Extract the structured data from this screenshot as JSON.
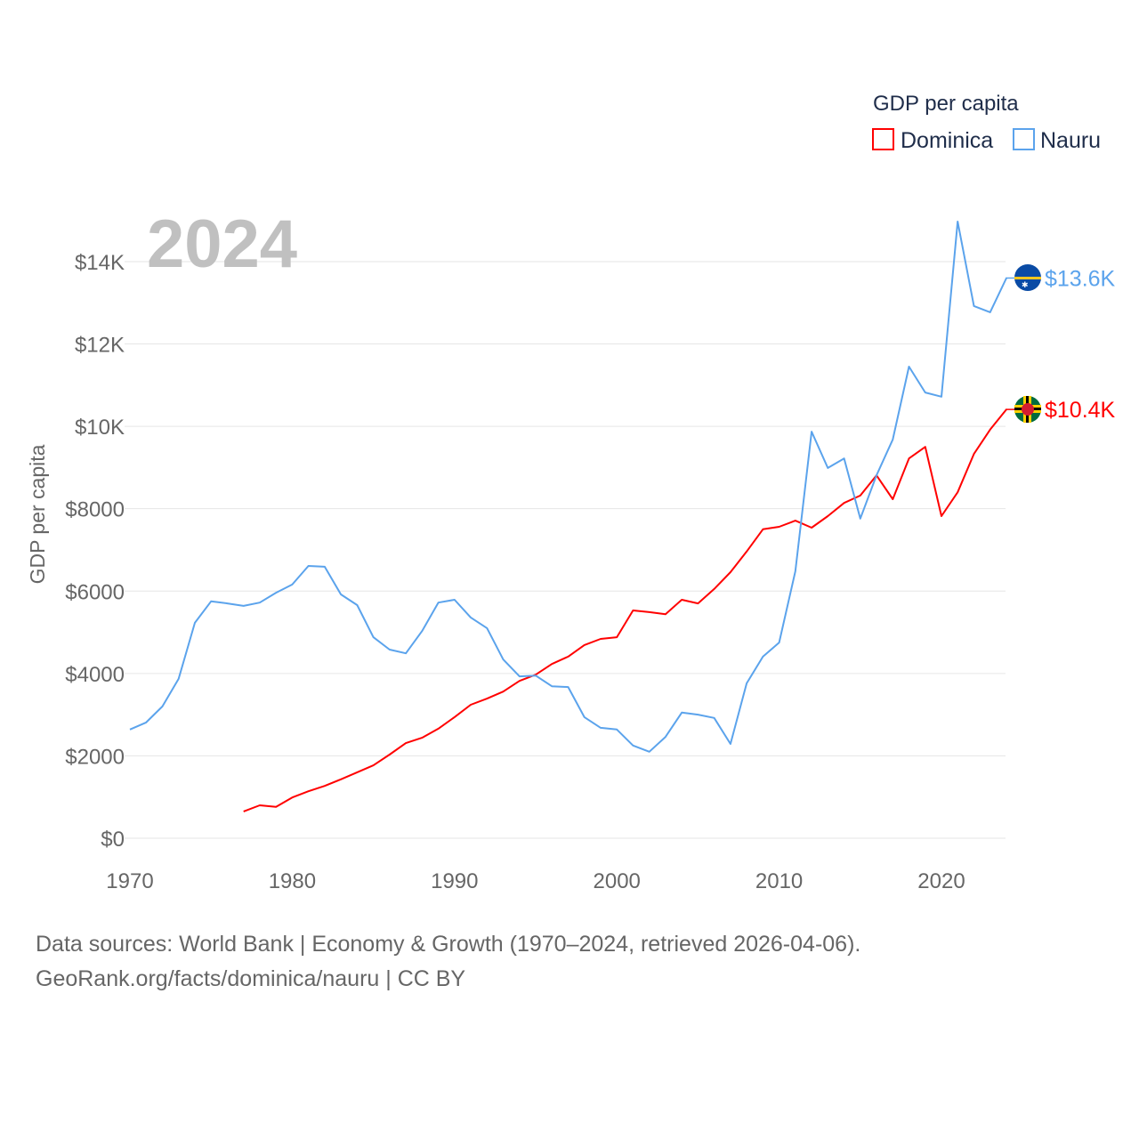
{
  "chart_data": {
    "type": "line",
    "title": "GDP per capita",
    "xlabel": "",
    "ylabel": "GDP per capita",
    "xlim": [
      1970,
      2024
    ],
    "ylim": [
      0,
      15000
    ],
    "grid": true,
    "legend_placement": "top-right",
    "year_label": "2024",
    "x_ticks": [
      1970,
      1980,
      1990,
      2000,
      2010,
      2020
    ],
    "y_ticks": [
      {
        "v": 0,
        "label": "$0"
      },
      {
        "v": 2000,
        "label": "$2000"
      },
      {
        "v": 4000,
        "label": "$4000"
      },
      {
        "v": 6000,
        "label": "$6000"
      },
      {
        "v": 8000,
        "label": "$8000"
      },
      {
        "v": 10000,
        "label": "$10K"
      },
      {
        "v": 12000,
        "label": "$12K"
      },
      {
        "v": 14000,
        "label": "$14K"
      }
    ],
    "series": [
      {
        "name": "Dominica",
        "color": "#ff0000",
        "end_label": "$10.4K",
        "start_year": 1977,
        "values": [
          650,
          800,
          760,
          990,
          1140,
          1270,
          1430,
          1600,
          1770,
          2030,
          2310,
          2440,
          2660,
          2940,
          3240,
          3390,
          3560,
          3820,
          3970,
          4230,
          4410,
          4690,
          4840,
          4880,
          5530,
          5490,
          5440,
          5790,
          5700,
          6050,
          6460,
          6960,
          7500,
          7560,
          7710,
          7540,
          7820,
          8140,
          8320,
          8810,
          8230,
          9220,
          9500,
          7820,
          8400,
          9330,
          9920,
          10410
        ]
      },
      {
        "name": "Nauru",
        "color": "#5ba3ec",
        "end_label": "$13.6K",
        "start_year": 1970,
        "values": [
          2640,
          2810,
          3200,
          3870,
          5230,
          5750,
          5700,
          5640,
          5720,
          5960,
          6160,
          6610,
          6590,
          5920,
          5660,
          4880,
          4580,
          4490,
          5030,
          5720,
          5790,
          5360,
          5100,
          4340,
          3930,
          3950,
          3690,
          3670,
          2940,
          2680,
          2640,
          2250,
          2100,
          2460,
          3050,
          3000,
          2920,
          2290,
          3760,
          4410,
          4750,
          6480,
          9870,
          8990,
          9220,
          7760,
          8810,
          9680,
          11450,
          10820,
          10720,
          14970,
          12920,
          12770,
          13600
        ]
      }
    ]
  },
  "footer": {
    "line1": "Data sources: World Bank | Economy & Growth (1970–2024, retrieved 2026-04-06).",
    "line2": "GeoRank.org/facts/dominica/nauru | CC BY"
  }
}
